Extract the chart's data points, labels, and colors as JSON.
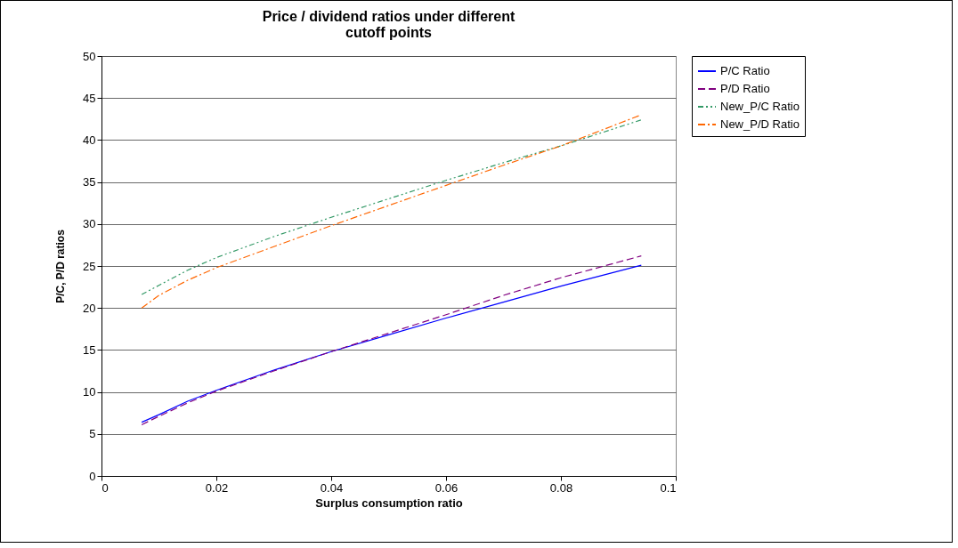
{
  "chart_data": {
    "type": "line",
    "title": "Price / dividend ratios under different cutoff points",
    "xlabel": "Surplus consumption ratio",
    "ylabel": "P/C, P/D ratios",
    "x": [
      0.007,
      0.01,
      0.015,
      0.02,
      0.03,
      0.04,
      0.05,
      0.06,
      0.07,
      0.08,
      0.094
    ],
    "series": [
      {
        "name": "P/C Ratio",
        "color": "#0000ff",
        "line_style": "solid",
        "values": [
          6.4,
          7.3,
          8.9,
          10.2,
          12.6,
          14.8,
          16.8,
          18.8,
          20.7,
          22.6,
          25.1
        ]
      },
      {
        "name": "P/D Ratio",
        "color": "#800080",
        "line_style": "dashed",
        "values": [
          6.1,
          7.1,
          8.7,
          10.1,
          12.5,
          14.8,
          17.0,
          19.2,
          21.5,
          23.6,
          26.2
        ]
      },
      {
        "name": "New_P/C Ratio",
        "color": "#339966",
        "line_style": "dashed",
        "values": [
          21.6,
          22.7,
          24.5,
          26.0,
          28.5,
          30.8,
          33.0,
          35.2,
          37.3,
          39.3,
          42.4
        ]
      },
      {
        "name": "New_P/D Ratio",
        "color": "#ff6600",
        "line_style": "dashed",
        "values": [
          20.0,
          21.5,
          23.3,
          24.8,
          27.3,
          29.8,
          32.2,
          34.6,
          37.0,
          39.3,
          43.0
        ]
      }
    ],
    "xlim": [
      0,
      0.1
    ],
    "xticks": [
      0,
      0.02,
      0.04,
      0.06,
      0.08,
      0.1
    ],
    "ylim": [
      0,
      50
    ],
    "yticks": [
      0,
      5,
      10,
      15,
      20,
      25,
      30,
      35,
      40,
      45,
      50
    ],
    "grid": "y",
    "legend": "right",
    "marker": "none"
  }
}
